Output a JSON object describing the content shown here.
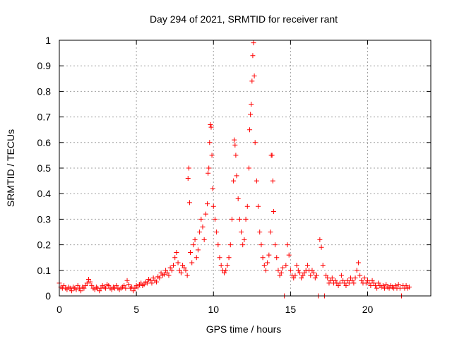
{
  "chart_data": {
    "type": "scatter",
    "title": "Day 294 of 2021, SRMTID for receiver rant",
    "xlabel": "GPS time / hours",
    "ylabel": "SRMTID / TECUs",
    "xlim": [
      0,
      24.1
    ],
    "ylim": [
      0,
      1
    ],
    "xticks": [
      0,
      5,
      10,
      15,
      20
    ],
    "xtick_labels": [
      "0",
      "5",
      "10",
      "15",
      "20"
    ],
    "yticks": [
      0,
      0.1,
      0.2,
      0.3,
      0.4,
      0.5,
      0.6,
      0.7,
      0.8,
      0.9,
      1
    ],
    "ytick_labels": [
      "0",
      "0.1",
      "0.2",
      "0.3",
      "0.4",
      "0.5",
      "0.6",
      "0.7",
      "0.8",
      "0.9",
      "1"
    ],
    "grid": true,
    "marker": "+",
    "series": [
      {
        "name": "SRMTID",
        "color": "#ff0000",
        "points": [
          [
            0.0,
            0.05
          ],
          [
            0.1,
            0.035
          ],
          [
            0.2,
            0.03
          ],
          [
            0.3,
            0.04
          ],
          [
            0.4,
            0.03
          ],
          [
            0.5,
            0.025
          ],
          [
            0.6,
            0.035
          ],
          [
            0.7,
            0.03
          ],
          [
            0.8,
            0.02
          ],
          [
            0.9,
            0.035
          ],
          [
            1.0,
            0.03
          ],
          [
            1.1,
            0.025
          ],
          [
            1.2,
            0.04
          ],
          [
            1.3,
            0.03
          ],
          [
            1.4,
            0.02
          ],
          [
            1.5,
            0.035
          ],
          [
            1.6,
            0.03
          ],
          [
            1.7,
            0.04
          ],
          [
            1.8,
            0.05
          ],
          [
            1.9,
            0.065
          ],
          [
            2.0,
            0.055
          ],
          [
            2.1,
            0.04
          ],
          [
            2.2,
            0.03
          ],
          [
            2.3,
            0.025
          ],
          [
            2.4,
            0.035
          ],
          [
            2.5,
            0.03
          ],
          [
            2.6,
            0.02
          ],
          [
            2.7,
            0.03
          ],
          [
            2.8,
            0.04
          ],
          [
            2.9,
            0.035
          ],
          [
            3.0,
            0.03
          ],
          [
            3.1,
            0.045
          ],
          [
            3.2,
            0.04
          ],
          [
            3.3,
            0.03
          ],
          [
            3.4,
            0.025
          ],
          [
            3.5,
            0.035
          ],
          [
            3.6,
            0.03
          ],
          [
            3.7,
            0.04
          ],
          [
            3.8,
            0.03
          ],
          [
            3.9,
            0.025
          ],
          [
            4.0,
            0.03
          ],
          [
            4.1,
            0.035
          ],
          [
            4.2,
            0.04
          ],
          [
            4.3,
            0.03
          ],
          [
            4.4,
            0.06
          ],
          [
            4.5,
            0.045
          ],
          [
            4.6,
            0.03
          ],
          [
            4.7,
            0.035
          ],
          [
            4.8,
            0.02
          ],
          [
            4.9,
            0.03
          ],
          [
            5.0,
            0.04
          ],
          [
            5.1,
            0.035
          ],
          [
            5.2,
            0.045
          ],
          [
            5.3,
            0.05
          ],
          [
            5.4,
            0.04
          ],
          [
            5.5,
            0.045
          ],
          [
            5.6,
            0.055
          ],
          [
            5.7,
            0.05
          ],
          [
            5.8,
            0.065
          ],
          [
            5.9,
            0.06
          ],
          [
            6.0,
            0.05
          ],
          [
            6.1,
            0.07
          ],
          [
            6.2,
            0.06
          ],
          [
            6.3,
            0.055
          ],
          [
            6.4,
            0.075
          ],
          [
            6.5,
            0.07
          ],
          [
            6.6,
            0.09
          ],
          [
            6.7,
            0.08
          ],
          [
            6.8,
            0.085
          ],
          [
            6.9,
            0.1
          ],
          [
            7.0,
            0.09
          ],
          [
            7.1,
            0.08
          ],
          [
            7.2,
            0.11
          ],
          [
            7.3,
            0.1
          ],
          [
            7.4,
            0.12
          ],
          [
            7.5,
            0.15
          ],
          [
            7.6,
            0.17
          ],
          [
            7.7,
            0.13
          ],
          [
            7.8,
            0.1
          ],
          [
            7.9,
            0.09
          ],
          [
            8.0,
            0.12
          ],
          [
            8.1,
            0.11
          ],
          [
            8.2,
            0.1
          ],
          [
            8.3,
            0.08
          ],
          [
            8.35,
            0.46
          ],
          [
            8.4,
            0.5
          ],
          [
            8.45,
            0.365
          ],
          [
            8.5,
            0.17
          ],
          [
            8.6,
            0.13
          ],
          [
            8.7,
            0.2
          ],
          [
            8.8,
            0.22
          ],
          [
            8.9,
            0.15
          ],
          [
            9.0,
            0.18
          ],
          [
            9.1,
            0.25
          ],
          [
            9.2,
            0.3
          ],
          [
            9.3,
            0.27
          ],
          [
            9.4,
            0.22
          ],
          [
            9.5,
            0.32
          ],
          [
            9.6,
            0.36
          ],
          [
            9.65,
            0.48
          ],
          [
            9.7,
            0.5
          ],
          [
            9.75,
            0.6
          ],
          [
            9.8,
            0.67
          ],
          [
            9.85,
            0.66
          ],
          [
            9.9,
            0.55
          ],
          [
            9.95,
            0.42
          ],
          [
            10.0,
            0.35
          ],
          [
            10.1,
            0.3
          ],
          [
            10.2,
            0.25
          ],
          [
            10.3,
            0.2
          ],
          [
            10.4,
            0.15
          ],
          [
            10.5,
            0.12
          ],
          [
            10.6,
            0.1
          ],
          [
            10.7,
            0.09
          ],
          [
            10.8,
            0.1
          ],
          [
            10.9,
            0.12
          ],
          [
            11.0,
            0.15
          ],
          [
            11.1,
            0.2
          ],
          [
            11.2,
            0.3
          ],
          [
            11.3,
            0.45
          ],
          [
            11.35,
            0.61
          ],
          [
            11.4,
            0.59
          ],
          [
            11.45,
            0.55
          ],
          [
            11.5,
            0.47
          ],
          [
            11.6,
            0.38
          ],
          [
            11.7,
            0.3
          ],
          [
            11.8,
            0.25
          ],
          [
            11.9,
            0.2
          ],
          [
            12.0,
            0.22
          ],
          [
            12.1,
            0.3
          ],
          [
            12.2,
            0.35
          ],
          [
            12.3,
            0.5
          ],
          [
            12.35,
            0.65
          ],
          [
            12.4,
            0.71
          ],
          [
            12.45,
            0.75
          ],
          [
            12.5,
            0.84
          ],
          [
            12.55,
            0.94
          ],
          [
            12.6,
            0.99
          ],
          [
            12.65,
            0.86
          ],
          [
            12.7,
            0.6
          ],
          [
            12.8,
            0.45
          ],
          [
            12.9,
            0.35
          ],
          [
            13.0,
            0.25
          ],
          [
            13.1,
            0.2
          ],
          [
            13.2,
            0.15
          ],
          [
            13.3,
            0.12
          ],
          [
            13.4,
            0.1
          ],
          [
            13.5,
            0.13
          ],
          [
            13.6,
            0.16
          ],
          [
            13.7,
            0.25
          ],
          [
            13.75,
            0.55
          ],
          [
            13.8,
            0.55
          ],
          [
            13.85,
            0.45
          ],
          [
            13.9,
            0.33
          ],
          [
            14.0,
            0.2
          ],
          [
            14.1,
            0.15
          ],
          [
            14.2,
            0.1
          ],
          [
            14.3,
            0.08
          ],
          [
            14.4,
            0.09
          ],
          [
            14.5,
            0.11
          ],
          [
            14.6,
            0.0
          ],
          [
            14.7,
            0.12
          ],
          [
            14.8,
            0.2
          ],
          [
            14.9,
            0.16
          ],
          [
            15.0,
            0.1
          ],
          [
            15.1,
            0.08
          ],
          [
            15.2,
            0.07
          ],
          [
            15.3,
            0.08
          ],
          [
            15.4,
            0.12
          ],
          [
            15.5,
            0.1
          ],
          [
            15.6,
            0.09
          ],
          [
            15.7,
            0.07
          ],
          [
            15.8,
            0.08
          ],
          [
            15.9,
            0.09
          ],
          [
            16.0,
            0.1
          ],
          [
            16.1,
            0.12
          ],
          [
            16.2,
            0.1
          ],
          [
            16.3,
            0.08
          ],
          [
            16.4,
            0.1
          ],
          [
            16.5,
            0.09
          ],
          [
            16.6,
            0.07
          ],
          [
            16.7,
            0.08
          ],
          [
            16.8,
            0.0
          ],
          [
            16.9,
            0.22
          ],
          [
            17.0,
            0.19
          ],
          [
            17.1,
            0.12
          ],
          [
            17.2,
            0.0
          ],
          [
            17.3,
            0.08
          ],
          [
            17.4,
            0.07
          ],
          [
            17.5,
            0.05
          ],
          [
            17.6,
            0.06
          ],
          [
            17.7,
            0.07
          ],
          [
            17.8,
            0.05
          ],
          [
            17.9,
            0.06
          ],
          [
            18.0,
            0.05
          ],
          [
            18.1,
            0.04
          ],
          [
            18.2,
            0.05
          ],
          [
            18.3,
            0.08
          ],
          [
            18.4,
            0.06
          ],
          [
            18.5,
            0.05
          ],
          [
            18.6,
            0.04
          ],
          [
            18.7,
            0.06
          ],
          [
            18.8,
            0.05
          ],
          [
            18.9,
            0.07
          ],
          [
            19.0,
            0.06
          ],
          [
            19.1,
            0.05
          ],
          [
            19.2,
            0.07
          ],
          [
            19.3,
            0.1
          ],
          [
            19.4,
            0.13
          ],
          [
            19.5,
            0.08
          ],
          [
            19.6,
            0.06
          ],
          [
            19.7,
            0.05
          ],
          [
            19.8,
            0.07
          ],
          [
            19.9,
            0.05
          ],
          [
            20.0,
            0.06
          ],
          [
            20.1,
            0.05
          ],
          [
            20.2,
            0.04
          ],
          [
            20.3,
            0.06
          ],
          [
            20.4,
            0.05
          ],
          [
            20.5,
            0.04
          ],
          [
            20.6,
            0.03
          ],
          [
            20.7,
            0.05
          ],
          [
            20.8,
            0.04
          ],
          [
            20.9,
            0.035
          ],
          [
            21.0,
            0.04
          ],
          [
            21.1,
            0.03
          ],
          [
            21.2,
            0.045
          ],
          [
            21.3,
            0.035
          ],
          [
            21.4,
            0.03
          ],
          [
            21.5,
            0.04
          ],
          [
            21.6,
            0.035
          ],
          [
            21.7,
            0.03
          ],
          [
            21.8,
            0.04
          ],
          [
            21.9,
            0.03
          ],
          [
            22.0,
            0.045
          ],
          [
            22.1,
            0.03
          ],
          [
            22.2,
            0.0
          ],
          [
            22.3,
            0.04
          ],
          [
            22.4,
            0.03
          ],
          [
            22.5,
            0.04
          ],
          [
            22.6,
            0.03
          ],
          [
            22.7,
            0.035
          ]
        ]
      }
    ]
  }
}
